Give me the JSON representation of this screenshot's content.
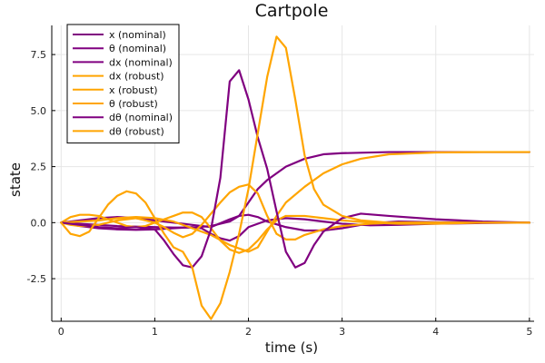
{
  "chart_data": {
    "type": "line",
    "title": "Cartpole",
    "xlabel": "time (s)",
    "ylabel": "state",
    "xlim": [
      -0.1,
      5.05
    ],
    "ylim": [
      -4.4,
      8.8
    ],
    "xticks": [
      0,
      1,
      2,
      3,
      4,
      5
    ],
    "xtick_labels": [
      "0",
      "1",
      "2",
      "3",
      "4",
      "5"
    ],
    "yticks": [
      -2.5,
      0,
      2.5,
      5,
      7.5
    ],
    "ytick_labels": [
      "-2.5",
      "0.0",
      "2.5",
      "5.0",
      "7.5"
    ],
    "grid": true,
    "legend_position": "top-left",
    "colors": {
      "nominal": "#800080",
      "robust": "#FFA500"
    },
    "series": [
      {
        "name": "x (nominal)",
        "color": "#800080",
        "x": [
          0,
          0.2,
          0.4,
          0.6,
          0.8,
          1.0,
          1.2,
          1.4,
          1.6,
          1.8,
          1.9,
          2.0,
          2.1,
          2.2,
          2.4,
          2.6,
          2.8,
          3.0,
          3.5,
          4.0,
          5.0
        ],
        "y": [
          0,
          -0.05,
          -0.1,
          -0.15,
          -0.18,
          -0.2,
          -0.22,
          -0.22,
          -0.15,
          0.05,
          0.3,
          0.9,
          1.5,
          1.9,
          2.5,
          2.85,
          3.05,
          3.1,
          3.15,
          3.15,
          3.15
        ]
      },
      {
        "name": "θ (nominal)",
        "color": "#800080",
        "x": [
          0,
          0.2,
          0.4,
          0.6,
          0.8,
          1.0,
          1.2,
          1.4,
          1.5,
          1.6,
          1.7,
          1.8,
          1.9,
          2.0,
          2.2,
          2.4,
          2.6,
          2.8,
          3.0,
          3.3,
          3.6,
          4.0,
          4.5,
          5.0
        ],
        "y": [
          0,
          -0.15,
          -0.25,
          -0.3,
          -0.32,
          -0.3,
          -0.25,
          -0.2,
          -0.25,
          -0.5,
          -0.7,
          -0.8,
          -0.6,
          -0.2,
          0.1,
          0.2,
          0.15,
          0.05,
          -0.05,
          -0.12,
          -0.1,
          -0.05,
          -0.02,
          0
        ]
      },
      {
        "name": "dx (nominal)",
        "color": "#800080",
        "x": [
          0,
          0.2,
          0.4,
          0.6,
          0.8,
          1.0,
          1.2,
          1.4,
          1.6,
          1.8,
          1.9,
          2.0,
          2.1,
          2.2,
          2.4,
          2.6,
          2.8,
          3.0,
          3.2,
          3.4,
          3.6,
          4.0,
          4.5,
          5.0
        ],
        "y": [
          0,
          0.1,
          0.2,
          0.25,
          0.2,
          0.1,
          0,
          -0.1,
          -0.2,
          0.15,
          0.3,
          0.35,
          0.25,
          0.05,
          -0.2,
          -0.35,
          -0.35,
          -0.25,
          -0.1,
          0,
          0.05,
          0.02,
          0,
          0
        ]
      },
      {
        "name": "dx (robust)",
        "color": "#FFA500",
        "x": [
          0,
          0.1,
          0.2,
          0.3,
          0.4,
          0.5,
          0.6,
          0.7,
          0.8,
          0.9,
          1.0,
          1.1,
          1.2,
          1.3,
          1.4,
          1.5,
          1.6,
          1.7,
          1.8,
          1.9,
          2.0,
          2.1,
          2.2,
          2.3,
          2.4,
          2.6,
          2.8,
          3.0,
          3.3,
          3.6,
          4.0,
          4.5,
          5.0
        ],
        "y": [
          0,
          0.25,
          0.35,
          0.35,
          0.3,
          0.15,
          0,
          -0.15,
          -0.2,
          -0.15,
          0,
          0.15,
          0.3,
          0.45,
          0.45,
          0.25,
          -0.25,
          -0.8,
          -1.2,
          -1.35,
          -1.2,
          -0.8,
          -0.3,
          0.1,
          0.3,
          0.3,
          0.2,
          0.1,
          0,
          -0.05,
          -0.05,
          0,
          0
        ]
      },
      {
        "name": "x (robust)",
        "color": "#FFA500",
        "x": [
          0,
          0.2,
          0.4,
          0.6,
          0.8,
          1.0,
          1.2,
          1.4,
          1.6,
          1.8,
          2.0,
          2.1,
          2.2,
          2.3,
          2.4,
          2.6,
          2.8,
          3.0,
          3.2,
          3.5,
          4.0,
          4.5,
          5.0
        ],
        "y": [
          0,
          0.05,
          0.1,
          0.2,
          0.25,
          0.2,
          0.05,
          -0.25,
          -0.55,
          -1.0,
          -1.3,
          -1.1,
          -0.4,
          0.3,
          0.9,
          1.6,
          2.2,
          2.6,
          2.85,
          3.05,
          3.13,
          3.15,
          3.15
        ]
      },
      {
        "name": "θ (robust)",
        "color": "#FFA500",
        "x": [
          0,
          0.1,
          0.2,
          0.3,
          0.4,
          0.5,
          0.6,
          0.7,
          0.8,
          0.9,
          1.0,
          1.1,
          1.2,
          1.3,
          1.4,
          1.5,
          1.6,
          1.7,
          1.8,
          1.9,
          2.0,
          2.1,
          2.2,
          2.3,
          2.4,
          2.5,
          2.6,
          2.8,
          3.0,
          3.3,
          3.6,
          4.0,
          4.5,
          5.0
        ],
        "y": [
          0,
          -0.1,
          -0.15,
          -0.15,
          -0.1,
          0,
          0.1,
          0.15,
          0.2,
          0.1,
          0,
          -0.2,
          -0.45,
          -0.65,
          -0.5,
          -0.1,
          0.4,
          0.9,
          1.35,
          1.6,
          1.7,
          1.3,
          0.3,
          -0.5,
          -0.75,
          -0.75,
          -0.55,
          -0.3,
          -0.15,
          -0.05,
          0,
          0,
          0,
          0
        ]
      },
      {
        "name": "dθ (nominal)",
        "color": "#800080",
        "x": [
          0,
          0.2,
          0.4,
          0.6,
          0.8,
          1.0,
          1.1,
          1.2,
          1.3,
          1.4,
          1.5,
          1.6,
          1.7,
          1.8,
          1.9,
          2.0,
          2.1,
          2.2,
          2.3,
          2.4,
          2.5,
          2.6,
          2.7,
          2.8,
          3.0,
          3.2,
          3.5,
          4.0,
          4.5,
          5.0
        ],
        "y": [
          0,
          -0.1,
          -0.2,
          -0.25,
          -0.2,
          -0.3,
          -0.8,
          -1.4,
          -1.9,
          -2.0,
          -1.5,
          -0.3,
          2.0,
          6.3,
          6.8,
          5.5,
          3.8,
          2.4,
          0.5,
          -1.3,
          -2.0,
          -1.8,
          -1.0,
          -0.4,
          0.2,
          0.4,
          0.3,
          0.15,
          0.05,
          0
        ]
      },
      {
        "name": "dθ (robust)",
        "color": "#FFA500",
        "x": [
          0,
          0.1,
          0.2,
          0.3,
          0.4,
          0.5,
          0.6,
          0.7,
          0.8,
          0.9,
          1.0,
          1.1,
          1.2,
          1.3,
          1.4,
          1.5,
          1.6,
          1.7,
          1.8,
          1.9,
          2.0,
          2.1,
          2.2,
          2.3,
          2.4,
          2.5,
          2.6,
          2.7,
          2.8,
          3.0,
          3.2,
          3.5,
          4.0,
          4.5,
          5.0
        ],
        "y": [
          0,
          -0.5,
          -0.6,
          -0.4,
          0.2,
          0.8,
          1.2,
          1.4,
          1.3,
          0.9,
          0.2,
          -0.5,
          -1.1,
          -1.3,
          -2.0,
          -3.7,
          -4.3,
          -3.6,
          -2.2,
          -0.5,
          1.5,
          4.0,
          6.5,
          8.3,
          7.8,
          5.5,
          3.0,
          1.5,
          0.8,
          0.3,
          0.1,
          0,
          0,
          0,
          0
        ]
      }
    ]
  }
}
